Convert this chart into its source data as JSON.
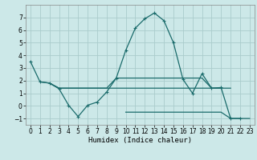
{
  "xlabel": "Humidex (Indice chaleur)",
  "ylabel": "",
  "background_color": "#cce8e8",
  "grid_color": "#aacccc",
  "line_color": "#1a6b6b",
  "xlim": [
    -0.5,
    23.5
  ],
  "ylim": [
    -1.5,
    8.0
  ],
  "yticks": [
    -1,
    0,
    1,
    2,
    3,
    4,
    5,
    6,
    7
  ],
  "xticks": [
    0,
    1,
    2,
    3,
    4,
    5,
    6,
    7,
    8,
    9,
    10,
    11,
    12,
    13,
    14,
    15,
    16,
    17,
    18,
    19,
    20,
    21,
    22,
    23
  ],
  "lines": [
    {
      "x": [
        0,
        1,
        2,
        3,
        4,
        5,
        6,
        7,
        8,
        9,
        10,
        11,
        12,
        13,
        14,
        15,
        16,
        17,
        18,
        19,
        20,
        21,
        22
      ],
      "y": [
        3.5,
        1.9,
        1.8,
        1.35,
        0.05,
        -0.85,
        0.05,
        0.3,
        1.1,
        2.2,
        4.4,
        6.15,
        6.9,
        7.35,
        6.75,
        5.0,
        2.1,
        1.0,
        2.55,
        1.4,
        1.45,
        -1.0,
        -1.0
      ],
      "markers": true
    },
    {
      "x": [
        1,
        2,
        3,
        4,
        5,
        6,
        7,
        8,
        9,
        10,
        11,
        12,
        13,
        14,
        15,
        16,
        17,
        18,
        19,
        20,
        21
      ],
      "y": [
        1.9,
        1.8,
        1.4,
        1.4,
        1.4,
        1.4,
        1.4,
        1.4,
        2.2,
        2.2,
        2.2,
        2.2,
        2.2,
        2.2,
        2.2,
        2.2,
        2.2,
        2.2,
        1.4,
        1.4,
        1.4
      ],
      "markers": false
    },
    {
      "x": [
        2,
        3,
        4,
        5,
        6,
        7,
        8,
        9,
        10,
        11,
        12,
        13,
        14,
        15,
        16,
        17,
        18,
        19,
        20
      ],
      "y": [
        1.8,
        1.4,
        1.4,
        1.4,
        1.4,
        1.4,
        1.4,
        1.4,
        1.4,
        1.4,
        1.4,
        1.4,
        1.4,
        1.4,
        1.4,
        1.4,
        1.4,
        1.4,
        1.4
      ],
      "markers": false
    },
    {
      "x": [
        10,
        11,
        12,
        13,
        14,
        15,
        16,
        17,
        18,
        19,
        20,
        21,
        22,
        23
      ],
      "y": [
        -0.5,
        -0.5,
        -0.5,
        -0.5,
        -0.5,
        -0.5,
        -0.5,
        -0.5,
        -0.5,
        -0.5,
        -0.5,
        -1.0,
        -1.0,
        -1.0
      ],
      "markers": false
    }
  ]
}
